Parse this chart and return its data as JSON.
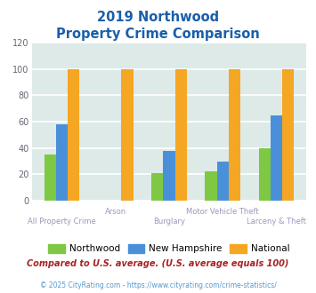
{
  "title_line1": "2019 Northwood",
  "title_line2": "Property Crime Comparison",
  "categories": [
    "All Property Crime",
    "Arson",
    "Burglary",
    "Motor Vehicle Theft",
    "Larceny & Theft"
  ],
  "northwood": [
    35,
    0,
    21,
    22,
    40
  ],
  "new_hampshire": [
    58,
    0,
    38,
    30,
    65
  ],
  "national": [
    100,
    100,
    100,
    100,
    100
  ],
  "northwood_color": "#7ec843",
  "nh_color": "#4a90d9",
  "national_color": "#f5a623",
  "ylim": [
    0,
    120
  ],
  "yticks": [
    0,
    20,
    40,
    60,
    80,
    100,
    120
  ],
  "bg_color": "#ddeae8",
  "grid_color": "#ffffff",
  "title_color": "#1a5faa",
  "xlabel_color": "#9999bb",
  "legend_labels": [
    "Northwood",
    "New Hampshire",
    "National"
  ],
  "note_text": "Compared to U.S. average. (U.S. average equals 100)",
  "footer_text": "© 2025 CityRating.com - https://www.cityrating.com/crime-statistics/",
  "note_color": "#aa2222",
  "footer_color": "#5599cc",
  "row1_labels": [
    "All Property Crime",
    "",
    "Burglary",
    "",
    "Larceny & Theft"
  ],
  "row2_labels": [
    "",
    "Arson",
    "",
    "Motor Vehicle Theft",
    ""
  ]
}
